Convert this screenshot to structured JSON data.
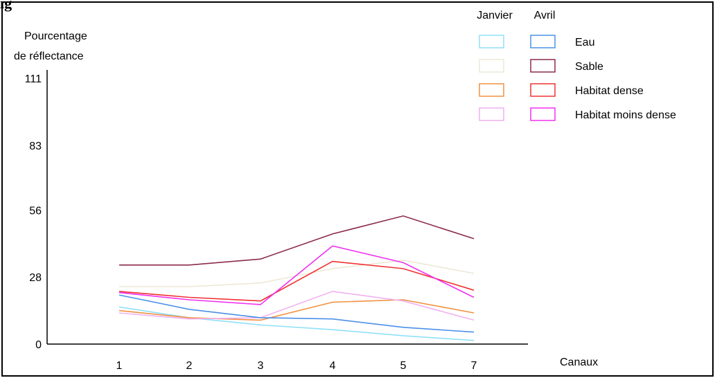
{
  "page": {
    "corner_text": "ig"
  },
  "chart_data": {
    "type": "line",
    "title": "",
    "ylabel_line1": "Pourcentage",
    "ylabel_line2": "de réflectance",
    "xlabel": "Canaux",
    "categories": [
      "1",
      "2",
      "3",
      "4",
      "5",
      "7"
    ],
    "yticks": [
      0,
      28,
      56,
      83,
      111
    ],
    "ylim": [
      0,
      111
    ],
    "legend": {
      "position": "top-right",
      "col_headers": [
        "Janvier",
        "Avril"
      ],
      "entries": [
        {
          "label": "Eau",
          "janvier_color": "#8fe0f8",
          "avril_color": "#4a90e8"
        },
        {
          "label": "Sable",
          "janvier_color": "#ece8d4",
          "avril_color": "#8b2a4b"
        },
        {
          "label": "Habitat dense",
          "janvier_color": "#f09040",
          "avril_color": "#f03030"
        },
        {
          "label": "Habitat moins dense",
          "janvier_color": "#f0b0f0",
          "avril_color": "#f030f0"
        }
      ]
    },
    "series": [
      {
        "name": "Eau",
        "month": "Janvier",
        "color": "#8fe0f8",
        "values": [
          15.5,
          11,
          8,
          6,
          3.5,
          1.5
        ]
      },
      {
        "name": "Sable",
        "month": "Janvier",
        "color": "#ece8d4",
        "values": [
          24,
          24,
          25.5,
          31.5,
          35,
          29.5
        ]
      },
      {
        "name": "Habitat dense",
        "month": "Janvier",
        "color": "#f09040",
        "values": [
          14,
          11,
          10,
          17.5,
          18.5,
          13
        ]
      },
      {
        "name": "Habitat moins dense",
        "month": "Janvier",
        "color": "#f0b0f0",
        "values": [
          13,
          10.5,
          11,
          22,
          18,
          10
        ]
      },
      {
        "name": "Eau",
        "month": "Avril",
        "color": "#4a90e8",
        "values": [
          20.5,
          14.5,
          11,
          10.5,
          7,
          5
        ]
      },
      {
        "name": "Sable",
        "month": "Avril",
        "color": "#8b2a4b",
        "values": [
          33,
          33,
          35.5,
          46,
          53.5,
          44
        ]
      },
      {
        "name": "Habitat dense",
        "month": "Avril",
        "color": "#f03030",
        "values": [
          22,
          19.5,
          18,
          34.5,
          31.5,
          22.5
        ]
      },
      {
        "name": "Habitat moins dense",
        "month": "Avril",
        "color": "#f030f0",
        "values": [
          21.5,
          18.5,
          16.5,
          41,
          34,
          19.5
        ]
      }
    ]
  }
}
